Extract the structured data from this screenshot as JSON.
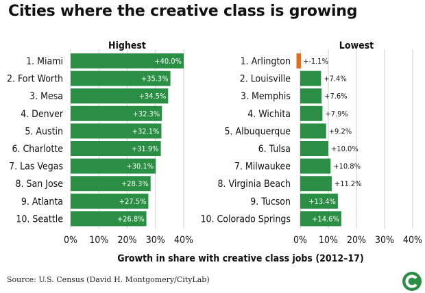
{
  "title": "Cities where the creative class is growing",
  "source": "Source: U.S. Census (David H. Montgomery/CityLab)",
  "logo_icon": "citylab-c-logo",
  "colors": {
    "positive": "#2a8f45",
    "negative": "#e07020",
    "grid": "#cfcfcf",
    "text": "#111111"
  },
  "chart_data": {
    "type": "bar",
    "orientation": "horizontal",
    "xlabel": "Growth in share with creative class jobs (2012–17)",
    "xlim": [
      0,
      40
    ],
    "ticks": [
      0,
      10,
      20,
      30,
      40
    ],
    "tick_labels": [
      "0%",
      "10%",
      "20%",
      "30%",
      "40%"
    ],
    "panels": [
      {
        "name": "highest",
        "title": "Highest",
        "categories": [
          "1. Miami",
          "2. Fort Worth",
          "3. Mesa",
          "4. Denver",
          "5. Austin",
          "6. Charlotte",
          "7. Las Vegas",
          "8. San Jose",
          "9. Atlanta",
          "10. Seattle"
        ],
        "values": [
          40.0,
          35.3,
          34.5,
          32.3,
          32.1,
          31.9,
          30.1,
          28.3,
          27.5,
          26.8
        ],
        "labels": [
          "+40.0%",
          "+35.3%",
          "+34.5%",
          "+32.3%",
          "+32.1%",
          "+31.9%",
          "+30.1%",
          "+28.3%",
          "+27.5%",
          "+26.8%"
        ]
      },
      {
        "name": "lowest",
        "title": "Lowest",
        "categories": [
          "1. Arlington",
          "2. Louisville",
          "3. Memphis",
          "4. Wichita",
          "5. Albuquerque",
          "6. Tulsa",
          "7. Milwaukee",
          "8. Virginia Beach",
          "9. Tucson",
          "10. Colorado Springs"
        ],
        "values": [
          -1.1,
          7.4,
          7.6,
          7.9,
          9.2,
          10.0,
          10.8,
          11.2,
          13.4,
          14.6
        ],
        "labels": [
          "+-1.1%",
          "+7.4%",
          "+7.6%",
          "+7.9%",
          "+9.2%",
          "+10.0%",
          "+10.8%",
          "+11.2%",
          "+13.4%",
          "+14.6%"
        ]
      }
    ]
  }
}
